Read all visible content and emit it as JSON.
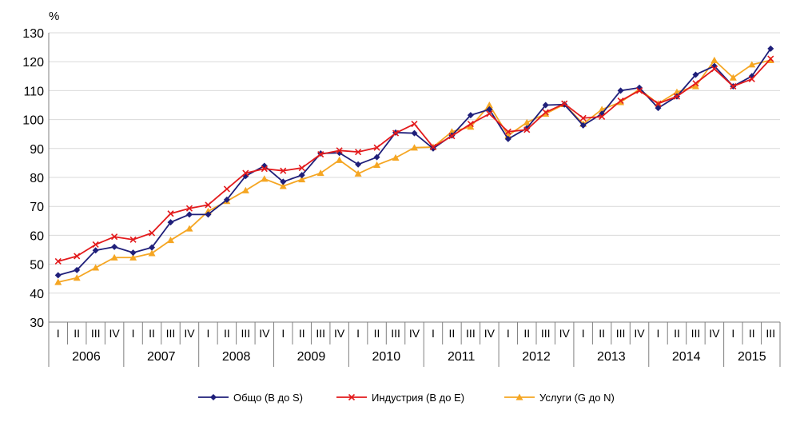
{
  "chart_data": {
    "type": "line",
    "unit": "%",
    "ylim": [
      30,
      130
    ],
    "yticks": [
      30,
      40,
      50,
      60,
      70,
      80,
      90,
      100,
      110,
      120,
      130
    ],
    "grid": true,
    "legend_position": "bottom",
    "quarter_labels": [
      "I",
      "II",
      "III",
      "IV",
      "I",
      "II",
      "III",
      "IV",
      "I",
      "II",
      "III",
      "IV",
      "I",
      "II",
      "III",
      "IV",
      "I",
      "II",
      "III",
      "IV",
      "I",
      "II",
      "III",
      "IV",
      "I",
      "II",
      "III",
      "IV",
      "I",
      "II",
      "III",
      "IV",
      "I",
      "II",
      "III",
      "IV",
      "I",
      "II",
      "III"
    ],
    "years": [
      {
        "label": "2006",
        "quarters": 4
      },
      {
        "label": "2007",
        "quarters": 4
      },
      {
        "label": "2008",
        "quarters": 4
      },
      {
        "label": "2009",
        "quarters": 4
      },
      {
        "label": "2010",
        "quarters": 4
      },
      {
        "label": "2011",
        "quarters": 4
      },
      {
        "label": "2012",
        "quarters": 4
      },
      {
        "label": "2013",
        "quarters": 4
      },
      {
        "label": "2014",
        "quarters": 4
      },
      {
        "label": "2015",
        "quarters": 3
      }
    ],
    "series": [
      {
        "name": "Общо  (B до S)",
        "color": "#1F1F7A",
        "marker": "diamond",
        "values": [
          46.2,
          48.0,
          54.8,
          56.0,
          54.0,
          55.8,
          64.5,
          67.2,
          67.2,
          72.3,
          80.5,
          84.0,
          78.5,
          80.8,
          88.3,
          88.5,
          84.5,
          87.0,
          95.5,
          95.3,
          90.0,
          94.5,
          101.5,
          103.5,
          93.3,
          97.0,
          105.0,
          105.2,
          98.0,
          102.0,
          110.0,
          111.0,
          104.0,
          108.0,
          115.5,
          118.5,
          111.5,
          115.0,
          124.5
        ]
      },
      {
        "name": "Индустрия  (B до E)",
        "color": "#E31A1C",
        "marker": "x",
        "values": [
          51.0,
          52.8,
          56.8,
          59.5,
          58.5,
          60.8,
          67.5,
          69.3,
          70.5,
          76.0,
          81.5,
          83.0,
          82.3,
          83.3,
          88.0,
          89.3,
          88.8,
          90.3,
          95.3,
          98.5,
          90.5,
          94.3,
          98.5,
          102.0,
          95.8,
          96.5,
          102.5,
          105.5,
          100.5,
          101.0,
          106.5,
          110.0,
          105.5,
          108.0,
          112.5,
          117.5,
          111.5,
          114.0,
          121.0
        ]
      },
      {
        "name": "Услуги  (G до N)",
        "color": "#F5A623",
        "marker": "triangle",
        "values": [
          43.8,
          45.3,
          48.8,
          52.3,
          52.3,
          53.8,
          58.3,
          62.3,
          68.3,
          71.8,
          75.5,
          79.5,
          77.0,
          79.3,
          81.5,
          86.0,
          81.3,
          84.3,
          86.8,
          90.3,
          90.5,
          95.8,
          97.5,
          105.0,
          94.5,
          99.0,
          102.0,
          105.3,
          98.5,
          103.5,
          106.0,
          110.5,
          105.5,
          109.5,
          111.5,
          120.5,
          114.5,
          119.0,
          120.5
        ]
      }
    ]
  }
}
